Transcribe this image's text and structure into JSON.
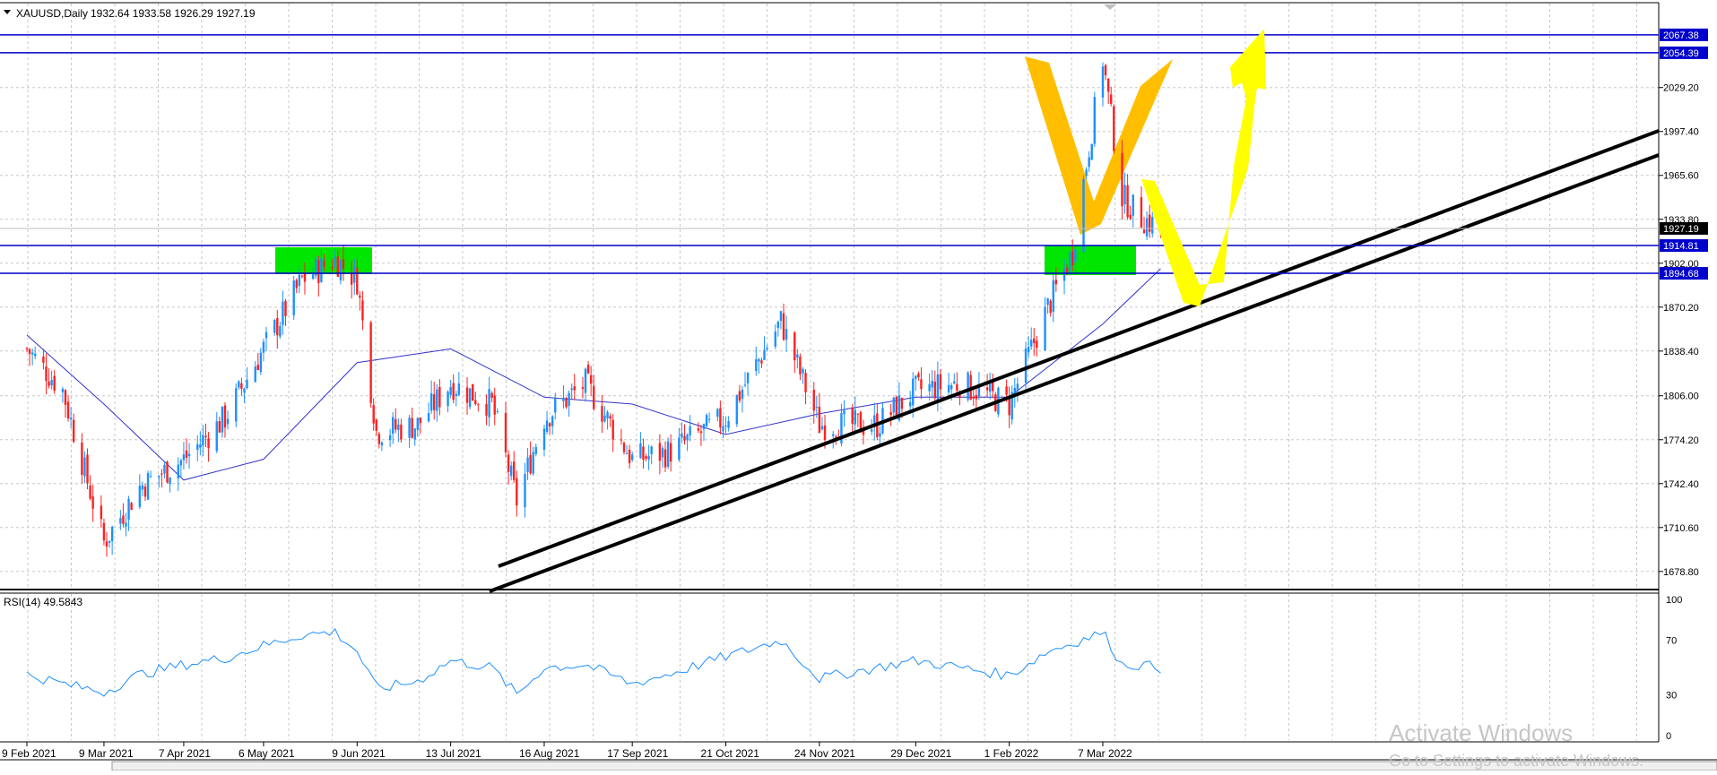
{
  "header": {
    "symbol": "XAUUSD,Daily",
    "ohlc": "1932.64 1933.58 1926.29 1927.19"
  },
  "rsi_panel": {
    "label": "RSI(14) 49.5843",
    "levels": [
      "100",
      "70",
      "30",
      "0"
    ]
  },
  "watermark": {
    "line1": "Activate Windows",
    "line2": "Go to Settings to activate Windows."
  },
  "colors": {
    "bull": "#1e90ff",
    "bear": "#ff2020",
    "ma": "#3333cc",
    "level_line": "#0000cc",
    "trendline": "#000000",
    "zone": "#00e600",
    "pattern": "#ffbf00",
    "projection": "#ffff00",
    "rsi_line": "#1e90ff",
    "price_tag_bg": "#0000cc",
    "current_price_bg": "#000000"
  },
  "chart_data": {
    "type": "candlestick",
    "symbol": "XAUUSD",
    "timeframe": "Daily",
    "current_price": 1927.19,
    "y_ticks": [
      2029.2,
      1997.4,
      1965.6,
      1933.8,
      1902.0,
      1870.2,
      1838.4,
      1806.0,
      1774.2,
      1742.4,
      1710.6,
      1678.8
    ],
    "ylim": [
      1667,
      2090
    ],
    "x_labels": [
      "9 Feb 2021",
      "9 Mar 2021",
      "7 Apr 2021",
      "6 May 2021",
      "9 Jun 2021",
      "13 Jul 2021",
      "16 Aug 2021",
      "17 Sep 2021",
      "21 Oct 2021",
      "24 Nov 2021",
      "29 Dec 2021",
      "1 Feb 2022",
      "7 Mar 2022"
    ],
    "price_levels": [
      {
        "label": "2067.38",
        "value": 2067.38
      },
      {
        "label": "2054.39",
        "value": 2054.39
      },
      {
        "label": "1914.81",
        "value": 1914.81
      },
      {
        "label": "1894.68",
        "value": 1894.68
      }
    ],
    "close_path": [
      [
        "9 Feb 2021",
        1840
      ],
      [
        "22 Feb 2021",
        1810
      ],
      [
        "9 Mar 2021",
        1700
      ],
      [
        "22 Mar 2021",
        1740
      ],
      [
        "7 Apr 2021",
        1760
      ],
      [
        "22 Apr 2021",
        1790
      ],
      [
        "6 May 2021",
        1840
      ],
      [
        "20 May 2021",
        1890
      ],
      [
        "1 Jun 2021",
        1905
      ],
      [
        "9 Jun 2021",
        1890
      ],
      [
        "16 Jun 2021",
        1780
      ],
      [
        "1 Jul 2021",
        1785
      ],
      [
        "13 Jul 2021",
        1815
      ],
      [
        "28 Jul 2021",
        1800
      ],
      [
        "6 Aug 2021",
        1730
      ],
      [
        "16 Aug 2021",
        1790
      ],
      [
        "31 Aug 2021",
        1815
      ],
      [
        "17 Sep 2021",
        1760
      ],
      [
        "30 Sep 2021",
        1765
      ],
      [
        "21 Oct 2021",
        1790
      ],
      [
        "10 Nov 2021",
        1860
      ],
      [
        "24 Nov 2021",
        1785
      ],
      [
        "15 Dec 2021",
        1785
      ],
      [
        "29 Dec 2021",
        1810
      ],
      [
        "14 Jan 2022",
        1815
      ],
      [
        "1 Feb 2022",
        1800
      ],
      [
        "15 Feb 2022",
        1870
      ],
      [
        "24 Feb 2022",
        1910
      ],
      [
        "7 Mar 2022",
        2050
      ],
      [
        "14 Mar 2022",
        1950
      ],
      [
        "21 Mar 2022",
        1935
      ],
      [
        "28 Mar 2022",
        1927.19
      ]
    ],
    "ma_path": [
      [
        "9 Feb 2021",
        1850
      ],
      [
        "9 Mar 2021",
        1800
      ],
      [
        "7 Apr 2021",
        1745
      ],
      [
        "6 May 2021",
        1760
      ],
      [
        "9 Jun 2021",
        1830
      ],
      [
        "13 Jul 2021",
        1840
      ],
      [
        "16 Aug 2021",
        1805
      ],
      [
        "17 Sep 2021",
        1800
      ],
      [
        "21 Oct 2021",
        1778
      ],
      [
        "24 Nov 2021",
        1793
      ],
      [
        "29 Dec 2021",
        1805
      ],
      [
        "1 Feb 2022",
        1805
      ],
      [
        "7 Mar 2022",
        1858
      ],
      [
        "28 Mar 2022",
        1898
      ]
    ],
    "rsi_path": [
      [
        "9 Feb 2021",
        45
      ],
      [
        "22 Feb 2021",
        38
      ],
      [
        "9 Mar 2021",
        32
      ],
      [
        "22 Mar 2021",
        45
      ],
      [
        "7 Apr 2021",
        52
      ],
      [
        "22 Apr 2021",
        57
      ],
      [
        "6 May 2021",
        66
      ],
      [
        "20 May 2021",
        74
      ],
      [
        "1 Jun 2021",
        76
      ],
      [
        "9 Jun 2021",
        62
      ],
      [
        "16 Jun 2021",
        34
      ],
      [
        "1 Jul 2021",
        40
      ],
      [
        "13 Jul 2021",
        55
      ],
      [
        "28 Jul 2021",
        50
      ],
      [
        "6 Aug 2021",
        30
      ],
      [
        "16 Aug 2021",
        50
      ],
      [
        "31 Aug 2021",
        52
      ],
      [
        "17 Sep 2021",
        38
      ],
      [
        "30 Sep 2021",
        45
      ],
      [
        "21 Oct 2021",
        58
      ],
      [
        "10 Nov 2021",
        70
      ],
      [
        "24 Nov 2021",
        42
      ],
      [
        "15 Dec 2021",
        50
      ],
      [
        "29 Dec 2021",
        55
      ],
      [
        "14 Jan 2022",
        50
      ],
      [
        "1 Feb 2022",
        44
      ],
      [
        "15 Feb 2022",
        62
      ],
      [
        "24 Feb 2022",
        68
      ],
      [
        "7 Mar 2022",
        76
      ],
      [
        "14 Mar 2022",
        52
      ],
      [
        "21 Mar 2022",
        52
      ],
      [
        "28 Mar 2022",
        49.58
      ]
    ]
  }
}
